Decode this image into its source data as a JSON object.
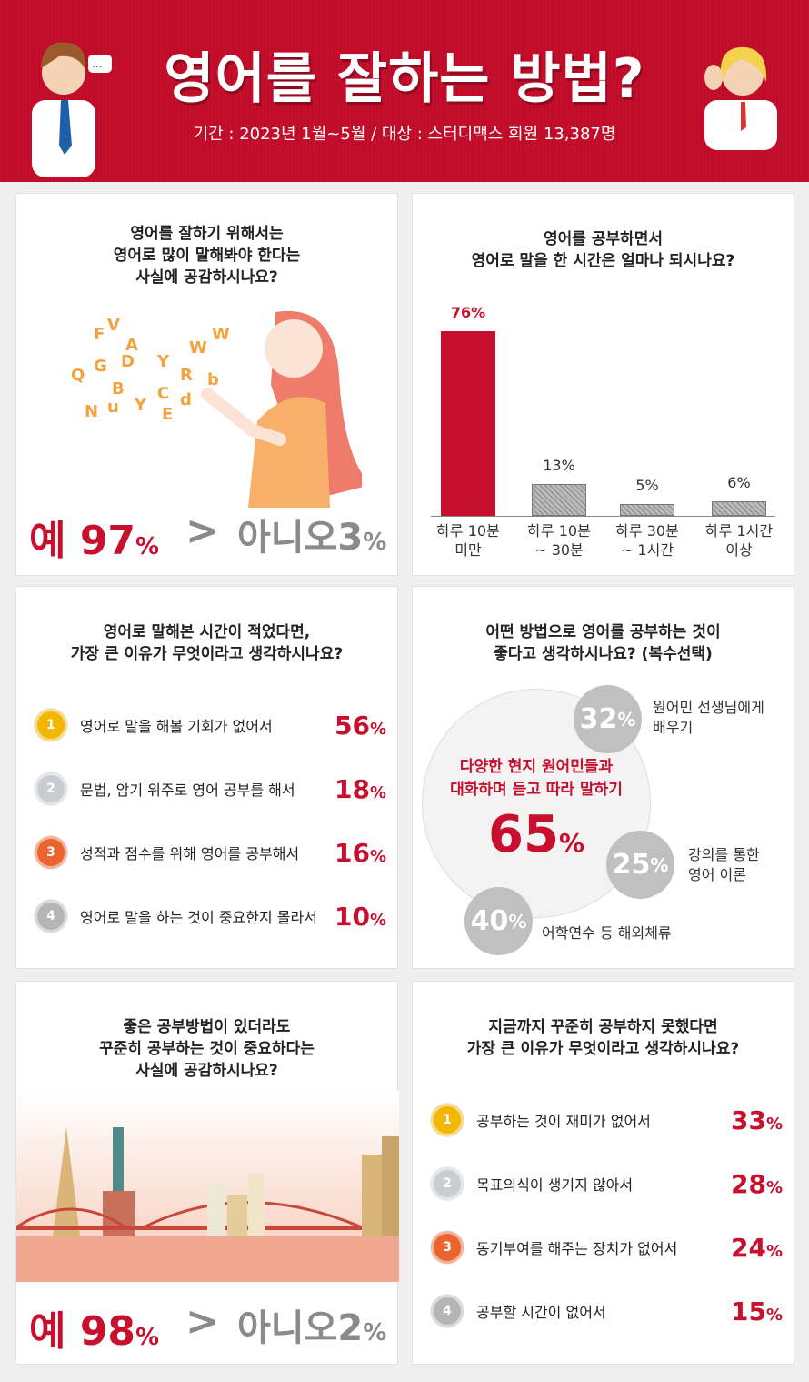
{
  "header": {
    "title": "영어를 잘하는 방법?",
    "subtitle": "기간 : 2023년 1월~5월 / 대상 : 스터디맥스 회원 13,387명"
  },
  "q1": {
    "question": [
      "영어를 잘하기 위해서는",
      "영어로 많이 말해봐야 한다는",
      "사실에 공감하시나요?"
    ],
    "yes_label": "예",
    "yes_value": "97",
    "no_label": "아니오",
    "no_value": "3",
    "unit": "%",
    "gt": ">"
  },
  "q2": {
    "question": [
      "영어를 공부하면서",
      "영어로 말을 한 시간은 얼마나 되시나요?"
    ]
  },
  "q3": {
    "question": [
      "영어로 말해본 시간이 적었다면,",
      "가장 큰 이유가 무엇이라고 생각하시나요?"
    ],
    "items": [
      {
        "rank": "1",
        "label": "영어로 말을 해볼 기회가 없어서",
        "value": "56"
      },
      {
        "rank": "2",
        "label": "문법, 암기 위주로 영어 공부를 해서",
        "value": "18"
      },
      {
        "rank": "3",
        "label": "성적과 점수를 위해 영어를 공부해서",
        "value": "16"
      },
      {
        "rank": "4",
        "label": "영어로 말을 하는 것이 중요한지 몰라서",
        "value": "10"
      }
    ],
    "unit": "%"
  },
  "q4": {
    "question": [
      "어떤 방법으로 영어를 공부하는 것이",
      "좋다고 생각하시나요? (복수선택)"
    ],
    "main": {
      "label": [
        "다양한 현지 원어민들과",
        "대화하며 듣고 따라 말하기"
      ],
      "value": "65"
    },
    "others": [
      {
        "value": "32",
        "label": [
          "원어민 선생님에게",
          "배우기"
        ]
      },
      {
        "value": "25",
        "label": [
          "강의를 통한",
          "영어 이론"
        ]
      },
      {
        "value": "40",
        "label": [
          "어학연수 등 해외체류"
        ]
      }
    ],
    "unit": "%"
  },
  "q5": {
    "question": [
      "좋은 공부방법이 있더라도",
      "꾸준히 공부하는 것이 중요하다는",
      "사실에 공감하시나요?"
    ],
    "yes_label": "예",
    "yes_value": "98",
    "no_label": "아니오",
    "no_value": "2",
    "unit": "%",
    "gt": ">"
  },
  "q6": {
    "question": [
      "지금까지 꾸준히 공부하지 못했다면",
      "가장 큰 이유가 무엇이라고 생각하시나요?"
    ],
    "items": [
      {
        "rank": "1",
        "label": "공부하는 것이 재미가 없어서",
        "value": "33"
      },
      {
        "rank": "2",
        "label": "목표의식이 생기지 않아서",
        "value": "28"
      },
      {
        "rank": "3",
        "label": "동기부여를 해주는 장치가 없어서",
        "value": "24"
      },
      {
        "rank": "4",
        "label": "공부할 시간이 없어서",
        "value": "15"
      }
    ],
    "unit": "%"
  },
  "colors": {
    "accent": "#c8102e",
    "gray": "#c0c0c0",
    "gold": "#f2b705",
    "silver": "#c9cdd2",
    "bronze": "#e9642e",
    "silver_dark": "#b5b5b5"
  },
  "chart_data": {
    "type": "bar",
    "title": "영어로 말을 한 시간은 얼마나 되시나요?",
    "categories": [
      [
        "하루 10분",
        "미만"
      ],
      [
        "하루 10분",
        "~ 30분"
      ],
      [
        "하루 30분",
        "~ 1시간"
      ],
      [
        "하루 1시간",
        "이상"
      ]
    ],
    "values": [
      76,
      13,
      5,
      6
    ],
    "labels": [
      "76%",
      "13%",
      "5%",
      "6%"
    ],
    "ylim": [
      0,
      100
    ],
    "grid": false
  }
}
